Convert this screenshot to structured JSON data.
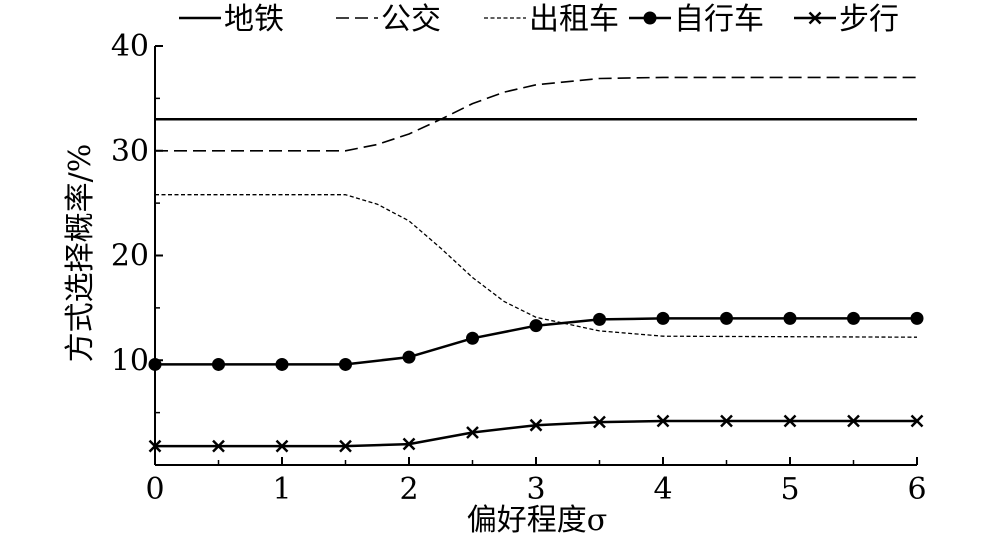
{
  "chart_data": {
    "type": "line",
    "xlabel": "偏好程度σ",
    "ylabel": "方式选择概率/%",
    "xlim": [
      0,
      6
    ],
    "ylim": [
      0,
      40
    ],
    "x_ticks": [
      "0",
      "1",
      "2",
      "3",
      "4",
      "5",
      "6"
    ],
    "y_ticks": [
      "10",
      "20",
      "30",
      "40"
    ],
    "y_tick_values": [
      10,
      20,
      30,
      40
    ],
    "legend_position": "top",
    "series": [
      {
        "name": "地铁",
        "style": "solid",
        "marker": "none",
        "points": [
          [
            0,
            33.0
          ],
          [
            6,
            33.0
          ]
        ]
      },
      {
        "name": "公交",
        "style": "dashed",
        "marker": "none",
        "points": [
          [
            0,
            30.0
          ],
          [
            1.5,
            30.0
          ],
          [
            1.75,
            30.6
          ],
          [
            2.0,
            31.6
          ],
          [
            2.25,
            33.0
          ],
          [
            2.5,
            34.5
          ],
          [
            2.75,
            35.6
          ],
          [
            3.0,
            36.3
          ],
          [
            3.5,
            36.9
          ],
          [
            4.0,
            37.0
          ],
          [
            6.0,
            37.0
          ]
        ]
      },
      {
        "name": "出租车",
        "style": "dotted",
        "marker": "none",
        "points": [
          [
            0,
            25.8
          ],
          [
            1.5,
            25.8
          ],
          [
            1.75,
            24.9
          ],
          [
            2.0,
            23.3
          ],
          [
            2.25,
            20.7
          ],
          [
            2.5,
            17.9
          ],
          [
            2.75,
            15.6
          ],
          [
            3.0,
            14.1
          ],
          [
            3.5,
            12.8
          ],
          [
            4.0,
            12.3
          ],
          [
            6.0,
            12.2
          ]
        ]
      },
      {
        "name": "自行车",
        "style": "solid",
        "marker": "circle",
        "points": [
          [
            0,
            9.6
          ],
          [
            0.5,
            9.6
          ],
          [
            1,
            9.6
          ],
          [
            1.5,
            9.6
          ],
          [
            2,
            10.3
          ],
          [
            2.5,
            12.1
          ],
          [
            3,
            13.3
          ],
          [
            3.5,
            13.9
          ],
          [
            4,
            14.0
          ],
          [
            4.5,
            14.0
          ],
          [
            5,
            14.0
          ],
          [
            5.5,
            14.0
          ],
          [
            6,
            14.0
          ]
        ]
      },
      {
        "name": "步行",
        "style": "solid",
        "marker": "cross",
        "points": [
          [
            0,
            1.8
          ],
          [
            0.5,
            1.8
          ],
          [
            1,
            1.8
          ],
          [
            1.5,
            1.8
          ],
          [
            2,
            2.0
          ],
          [
            2.5,
            3.1
          ],
          [
            3,
            3.8
          ],
          [
            3.5,
            4.1
          ],
          [
            4,
            4.2
          ],
          [
            4.5,
            4.2
          ],
          [
            5,
            4.2
          ],
          [
            5.5,
            4.2
          ],
          [
            6,
            4.2
          ]
        ]
      }
    ]
  }
}
